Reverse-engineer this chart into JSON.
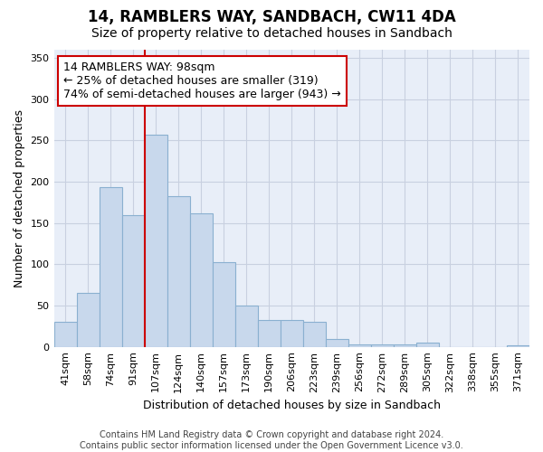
{
  "title": "14, RAMBLERS WAY, SANDBACH, CW11 4DA",
  "subtitle": "Size of property relative to detached houses in Sandbach",
  "xlabel": "Distribution of detached houses by size in Sandbach",
  "ylabel": "Number of detached properties",
  "categories": [
    "41sqm",
    "58sqm",
    "74sqm",
    "91sqm",
    "107sqm",
    "124sqm",
    "140sqm",
    "157sqm",
    "173sqm",
    "190sqm",
    "206sqm",
    "223sqm",
    "239sqm",
    "256sqm",
    "272sqm",
    "289sqm",
    "305sqm",
    "322sqm",
    "338sqm",
    "355sqm",
    "371sqm"
  ],
  "values": [
    30,
    65,
    193,
    160,
    257,
    183,
    162,
    103,
    50,
    33,
    33,
    30,
    10,
    3,
    3,
    3,
    5,
    0,
    0,
    0,
    2
  ],
  "bar_color": "#c8d8ec",
  "bar_edge_color": "#8ab0d0",
  "vline_x": 3.5,
  "vline_color": "#cc0000",
  "annotation_text": "14 RAMBLERS WAY: 98sqm\n← 25% of detached houses are smaller (319)\n74% of semi-detached houses are larger (943) →",
  "annotation_box_color": "#ffffff",
  "annotation_box_edge": "#cc0000",
  "ylim": [
    0,
    360
  ],
  "yticks": [
    0,
    50,
    100,
    150,
    200,
    250,
    300,
    350
  ],
  "grid_color": "#c8d0e0",
  "bg_color": "#e8eef8",
  "footer": "Contains HM Land Registry data © Crown copyright and database right 2024.\nContains public sector information licensed under the Open Government Licence v3.0.",
  "title_fontsize": 12,
  "subtitle_fontsize": 10,
  "xlabel_fontsize": 9,
  "ylabel_fontsize": 9,
  "annot_fontsize": 9,
  "tick_fontsize": 8,
  "footer_fontsize": 7
}
